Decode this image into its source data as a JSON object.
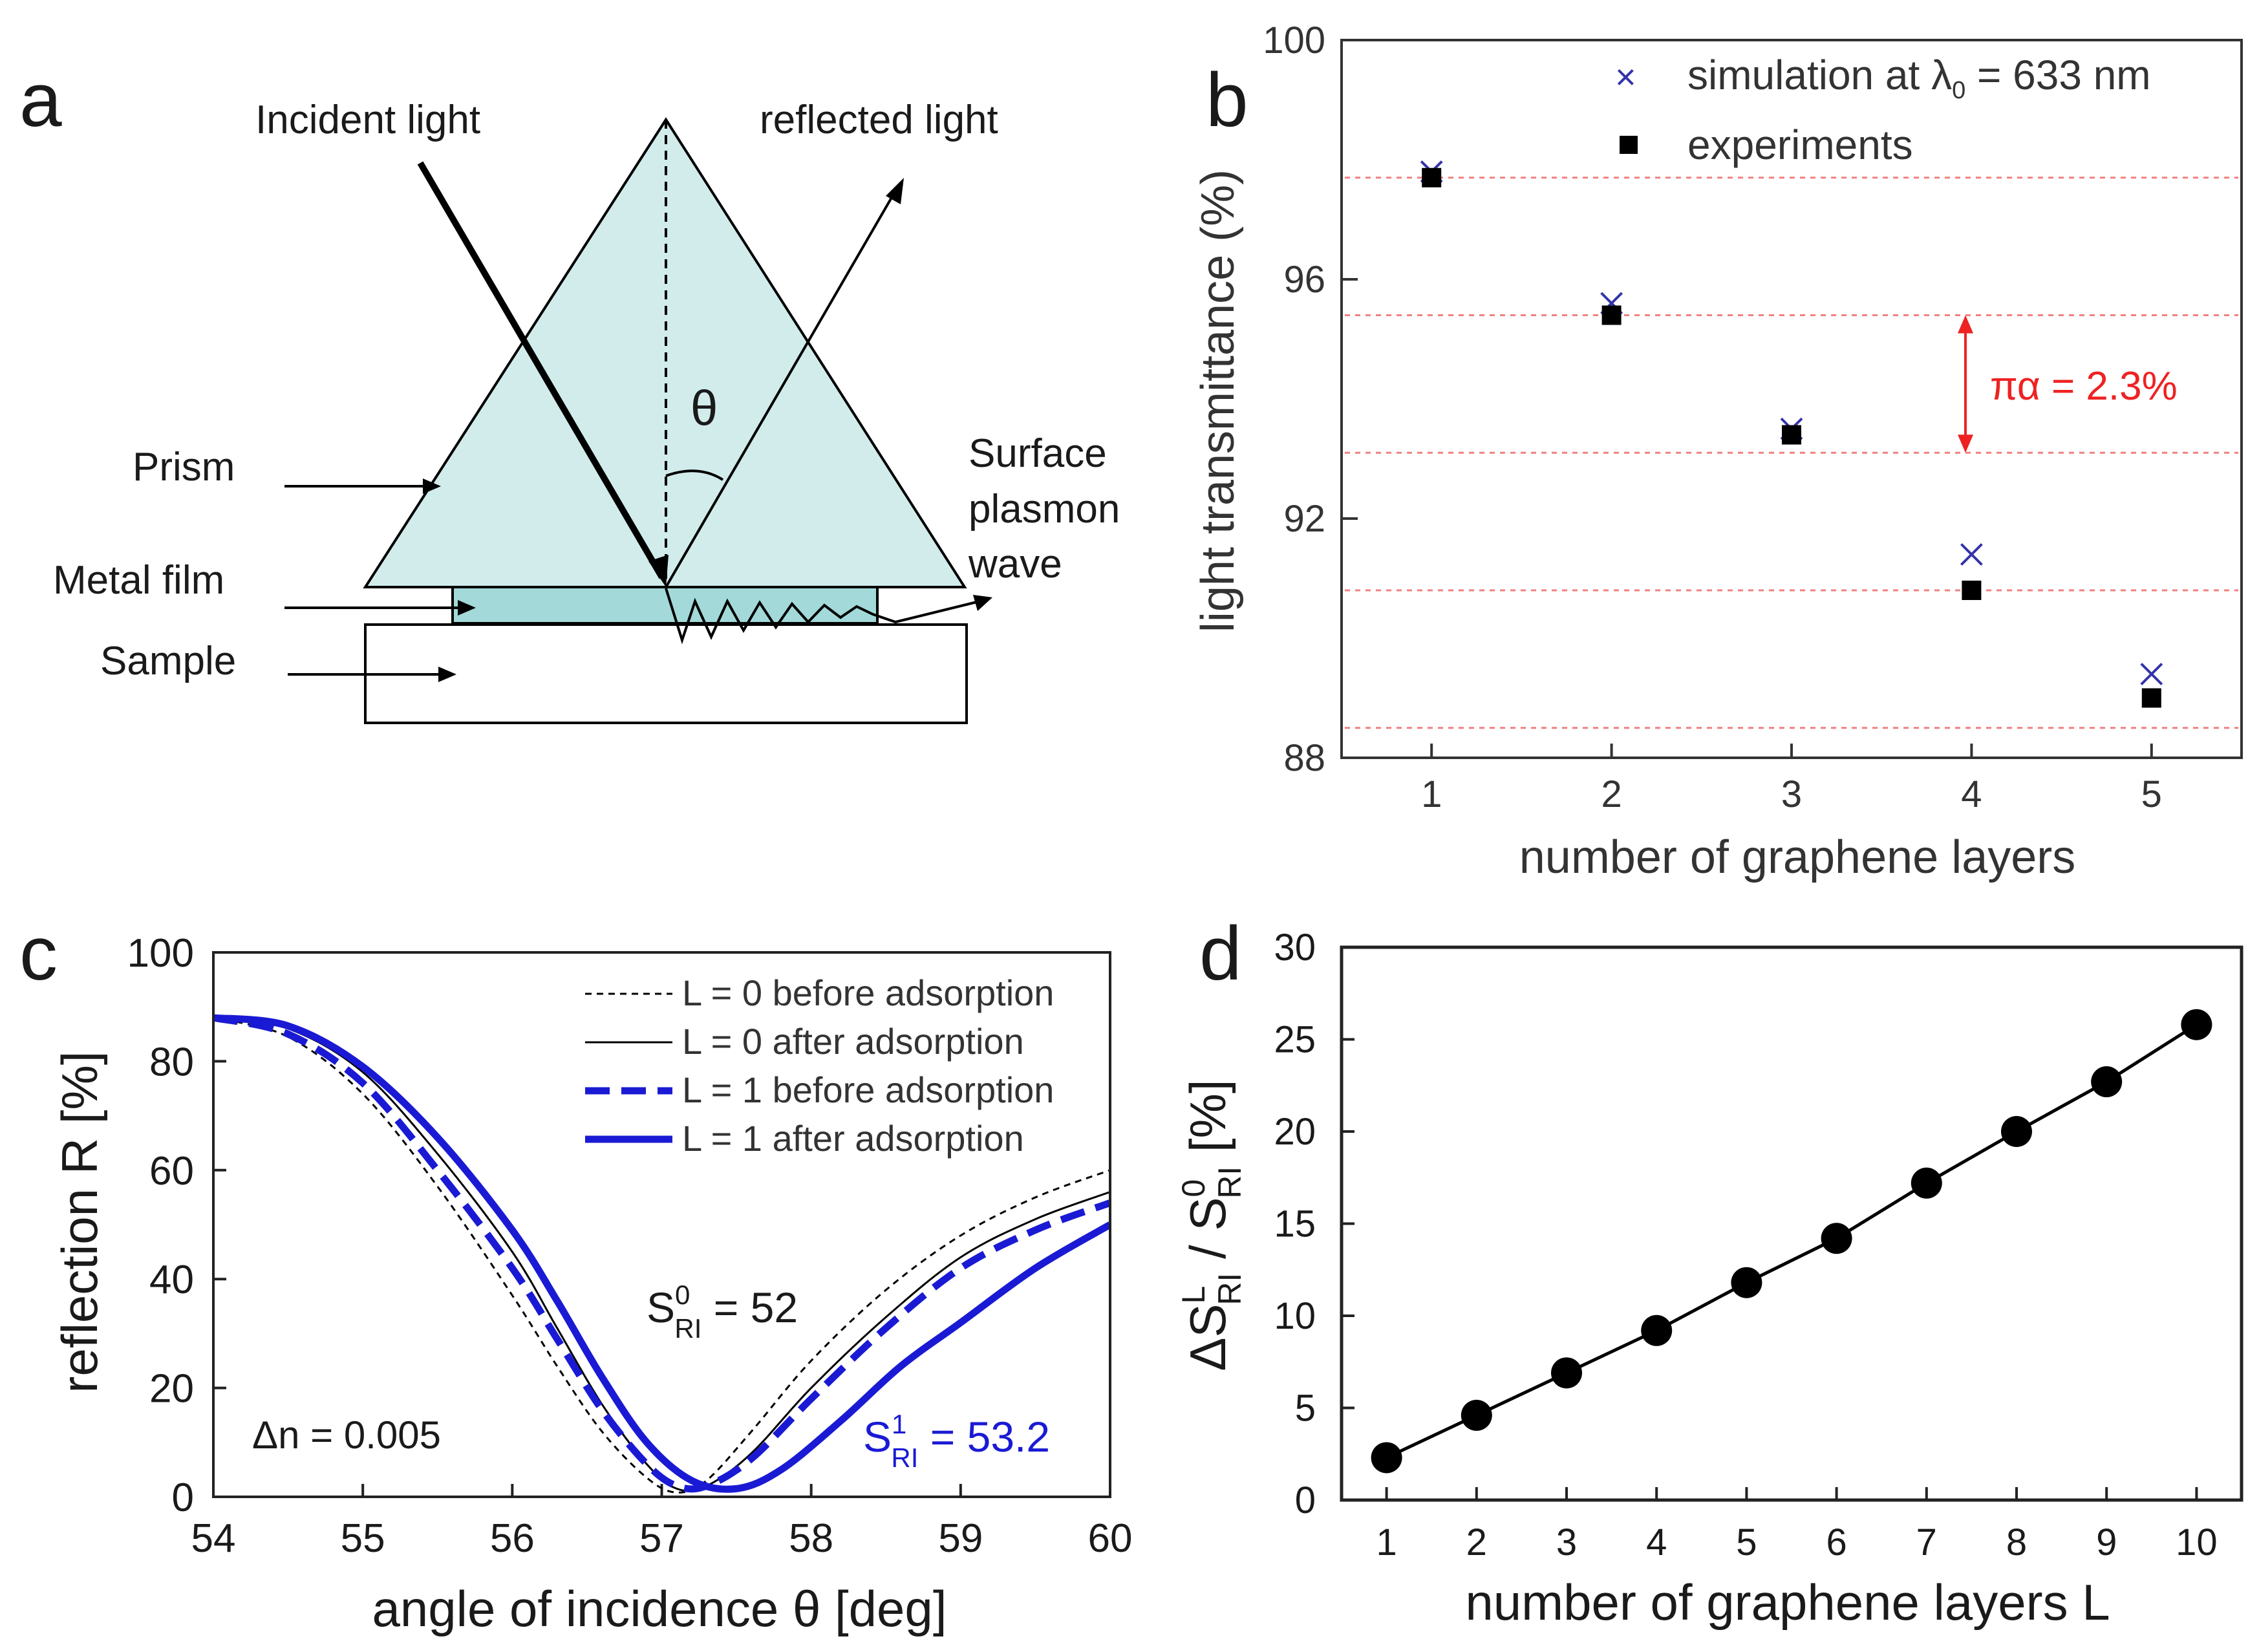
{
  "panel_labels": {
    "a": "a",
    "b": "b",
    "c": "c",
    "d": "d"
  },
  "diagram": {
    "incident_light": "Incident light",
    "reflected_light": "reflected light",
    "theta": "θ",
    "prism": "Prism",
    "metal_film": "Metal film",
    "sample": "Sample",
    "surface": "Surface",
    "plasmon": "plasmon",
    "wave": "wave",
    "colors": {
      "prism": "#d2ecec",
      "film": "#a3d9d9",
      "line": "#000000"
    }
  },
  "chart_data": [
    {
      "id": "b",
      "type": "scatter",
      "xlabel": "number of graphene layers",
      "ylabel": "light transmittance (%)",
      "xlim": [
        0.5,
        5.5
      ],
      "ylim": [
        88,
        100
      ],
      "xticks": [
        "1",
        "2",
        "3",
        "4",
        "5"
      ],
      "yticks": [
        "88",
        "92",
        "96",
        "100"
      ],
      "series": [
        {
          "name": "simulation at λ0 = 633 nm",
          "legend_main": "simulation at λ",
          "legend_sub": "0",
          "legend_tail": " = 633 nm",
          "marker": "x",
          "color": "#3333aa",
          "x": [
            1,
            2,
            3,
            4,
            5
          ],
          "y": [
            97.8,
            95.6,
            93.5,
            91.4,
            89.4
          ]
        },
        {
          "name": "experiments",
          "marker": "square",
          "color": "#000000",
          "x": [
            1,
            2,
            3,
            4,
            5
          ],
          "y": [
            97.7,
            95.4,
            93.4,
            90.8,
            89.0
          ]
        }
      ],
      "reference_lines": [
        97.7,
        95.4,
        93.1,
        90.8,
        88.5
      ],
      "reference_color": "#f08080",
      "annotation": {
        "text": "πα = 2.3%",
        "color": "#ee2222",
        "from": 95.4,
        "to": 93.1
      }
    },
    {
      "id": "c",
      "type": "line",
      "xlabel": "angle of incidence θ [deg]",
      "ylabel": "reflection R [%]",
      "xlim": [
        54,
        60
      ],
      "ylim": [
        0,
        100
      ],
      "xticks": [
        "54",
        "55",
        "56",
        "57",
        "58",
        "59",
        "60"
      ],
      "yticks": [
        "0",
        "20",
        "40",
        "60",
        "80",
        "100"
      ],
      "series": [
        {
          "name": "L = 0 before adsorption",
          "color": "#000000",
          "style": "dashed-thin",
          "x": [
            54,
            54.5,
            55,
            55.5,
            56,
            56.3,
            56.6,
            56.9,
            57.1,
            57.3,
            57.6,
            58,
            58.5,
            59,
            59.5,
            60
          ],
          "y": [
            88,
            84.5,
            74,
            57,
            37,
            24,
            12,
            3.5,
            0.8,
            3,
            12,
            25,
            38,
            48,
            55,
            60
          ]
        },
        {
          "name": "L = 0 after adsorption",
          "color": "#000000",
          "style": "solid-thin",
          "x": [
            54,
            54.5,
            55,
            55.5,
            56,
            56.3,
            56.6,
            56.9,
            57.1,
            57.3,
            57.6,
            58,
            58.5,
            59,
            59.5,
            60
          ],
          "y": [
            88,
            86,
            78,
            63,
            45,
            31,
            17,
            6,
            1.5,
            2,
            8,
            20,
            33,
            44,
            51,
            56
          ]
        },
        {
          "name": "L = 1 before adsorption",
          "color": "#1a1ad4",
          "style": "dashed-thick",
          "x": [
            54,
            54.5,
            55,
            55.5,
            56,
            56.3,
            56.6,
            56.9,
            57.1,
            57.3,
            57.6,
            58,
            58.5,
            59,
            59.5,
            60
          ],
          "y": [
            88,
            85,
            76,
            60,
            42,
            29,
            16,
            6,
            2,
            2,
            7,
            18,
            31,
            42,
            49,
            54
          ]
        },
        {
          "name": "L = 1 after adsorption",
          "color": "#1a1ad4",
          "style": "solid-thick",
          "x": [
            54,
            54.5,
            55,
            55.5,
            56,
            56.3,
            56.6,
            56.9,
            57.2,
            57.5,
            57.8,
            58.2,
            58.6,
            59,
            59.5,
            60
          ],
          "y": [
            88,
            86.5,
            79,
            66,
            49,
            36,
            22,
            10,
            3,
            1.5,
            5,
            14,
            24,
            32,
            42,
            50
          ]
        }
      ],
      "annotations": [
        {
          "main": "S",
          "sup": "0",
          "sub": "RI",
          "tail": " = 52",
          "color": "#1a1a1a"
        },
        {
          "main": "S",
          "sup": "1",
          "sub": "RI",
          "tail": " = 53.2",
          "color": "#1a1ad4"
        },
        {
          "text": "Δn = 0.005",
          "color": "#1a1a1a"
        }
      ]
    },
    {
      "id": "d",
      "type": "line",
      "xlabel": "number of graphene layers L",
      "ylabel_parts": {
        "delta": "ΔS",
        "sup1": "L",
        "sub1": "RI",
        "slash": " / S",
        "sup2": "0",
        "sub2": "RI",
        "unit": " [%]"
      },
      "xlim": [
        0.5,
        10.5
      ],
      "ylim": [
        0,
        30
      ],
      "xticks": [
        "1",
        "2",
        "3",
        "4",
        "5",
        "6",
        "7",
        "8",
        "9",
        "10"
      ],
      "yticks": [
        "0",
        "5",
        "10",
        "15",
        "20",
        "25",
        "30"
      ],
      "x": [
        1,
        2,
        3,
        4,
        5,
        6,
        7,
        8,
        9,
        10
      ],
      "y": [
        2.3,
        4.6,
        6.9,
        9.2,
        11.8,
        14.2,
        17.2,
        20.0,
        22.7,
        25.8
      ],
      "color": "#000000"
    }
  ]
}
